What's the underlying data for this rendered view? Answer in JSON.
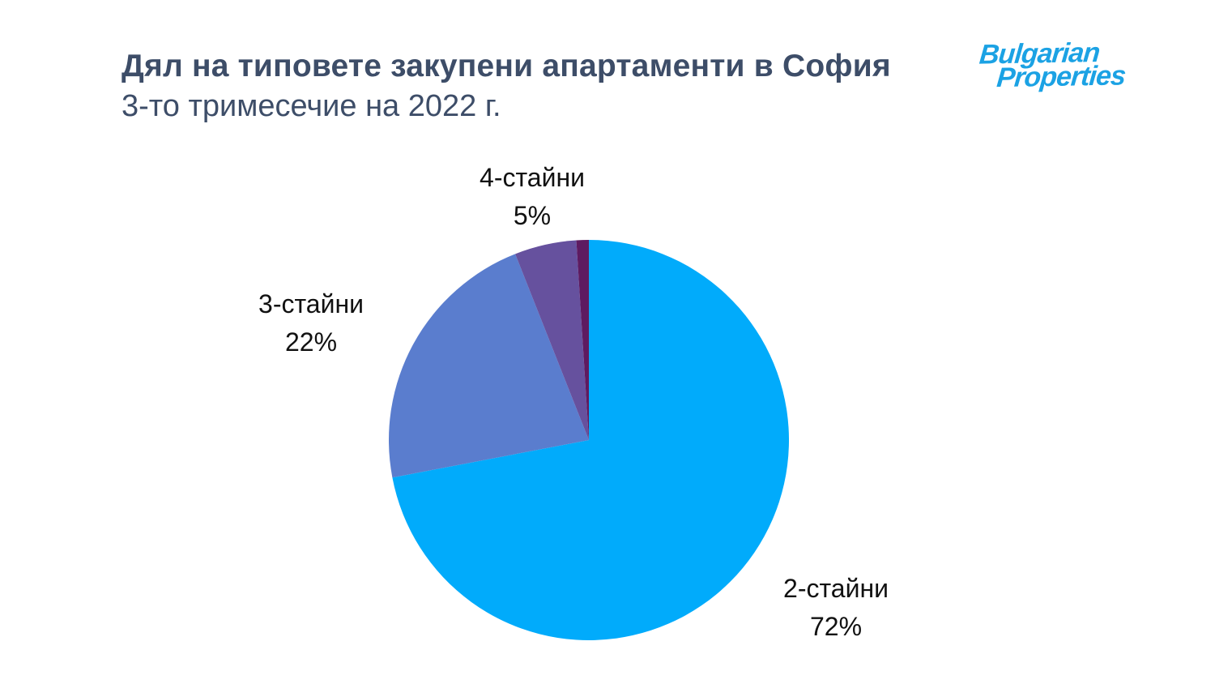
{
  "page": {
    "title": "Дял на типовете закупени апартаменти в София",
    "subtitle": "3-то тримесечие на 2022 г."
  },
  "logo": {
    "line1": "Bulgarian",
    "line2": "Properties",
    "color": "#1BA2E4"
  },
  "chart_data": {
    "type": "pie",
    "title": "Дял на типовете закупени апартаменти в София",
    "subtitle": "3-то тримесечие на 2022 г.",
    "start_angle_deg": 0,
    "direction": "clockwise",
    "legend_position": "none",
    "slices": [
      {
        "label": "2-стайни",
        "value": 72,
        "display": "72%",
        "color": "#01ABFB"
      },
      {
        "label": "3-стайни",
        "value": 22,
        "display": "22%",
        "color": "#5A7DCE"
      },
      {
        "label": "4-стайни",
        "value": 5,
        "display": "5%",
        "color": "#66519E"
      },
      {
        "label": "",
        "value": 1,
        "display": "",
        "color": "#5E1B61"
      }
    ]
  },
  "colors": {
    "heading": "#3D4D68",
    "label_text": "#111111",
    "background": "#FFFFFF"
  }
}
